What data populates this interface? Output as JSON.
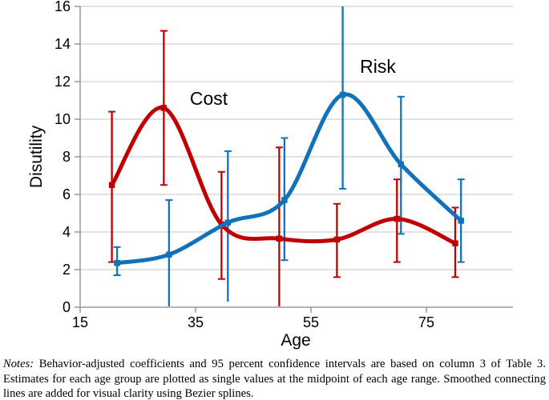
{
  "figure": {
    "notes_prefix": "Notes:",
    "notes_body": " Behavior-adjusted coefficients and 95 percent confidence intervals are based on column 3 of Table 3.  Estimates for each age group are plotted as single values at the midpoint of each age range.  Smoothed connecting lines are added for visual clarity using Bezier splines."
  },
  "chart_data": {
    "type": "line",
    "title": "",
    "xlabel": "Age",
    "ylabel": "Disutility",
    "xlim": [
      15,
      90
    ],
    "ylim": [
      0,
      16
    ],
    "x_ticks": [
      15,
      35,
      55,
      75
    ],
    "y_ticks": [
      0,
      2,
      4,
      6,
      8,
      10,
      12,
      14,
      16
    ],
    "grid": "horizontal",
    "smoothing": "bezier-spline",
    "error_bars": "95 percent confidence intervals",
    "axis_color": "#888888",
    "grid_color": "#c6c6c6",
    "series": [
      {
        "name": "Cost",
        "color": "#c00000",
        "label_pos": {
          "age": 37.3,
          "value": 11.1
        },
        "points": [
          {
            "age": 20.5,
            "value": 6.5,
            "ci_low": 2.4,
            "ci_high": 10.4
          },
          {
            "age": 29.5,
            "value": 10.6,
            "ci_low": 6.5,
            "ci_high": 14.7
          },
          {
            "age": 39.5,
            "value": 4.4,
            "ci_low": 1.5,
            "ci_high": 7.2
          },
          {
            "age": 49.5,
            "value": 3.65,
            "ci_low": 0.05,
            "ci_high": 8.5
          },
          {
            "age": 59.5,
            "value": 3.6,
            "ci_low": 1.6,
            "ci_high": 5.5
          },
          {
            "age": 69.9,
            "value": 4.7,
            "ci_low": 2.4,
            "ci_high": 6.8
          },
          {
            "age": 80,
            "value": 3.4,
            "ci_low": 1.6,
            "ci_high": 5.3
          }
        ]
      },
      {
        "name": "Risk",
        "color": "#1171ba",
        "label_pos": {
          "age": 66.6,
          "value": 12.8
        },
        "points": [
          {
            "age": 21.4,
            "value": 2.35,
            "ci_low": 1.7,
            "ci_high": 3.2
          },
          {
            "age": 30.4,
            "value": 2.8,
            "ci_low": 0.05,
            "ci_high": 5.7
          },
          {
            "age": 40.6,
            "value": 4.5,
            "ci_low": 0.3,
            "ci_high": 8.3
          },
          {
            "age": 50.4,
            "value": 5.7,
            "ci_low": 2.5,
            "ci_high": 9.0
          },
          {
            "age": 60.5,
            "value": 11.3,
            "ci_low": 6.3,
            "ci_high": 16.0
          },
          {
            "age": 70.6,
            "value": 7.6,
            "ci_low": 3.9,
            "ci_high": 11.2
          },
          {
            "age": 81,
            "value": 4.6,
            "ci_low": 2.4,
            "ci_high": 6.8
          }
        ]
      }
    ]
  }
}
